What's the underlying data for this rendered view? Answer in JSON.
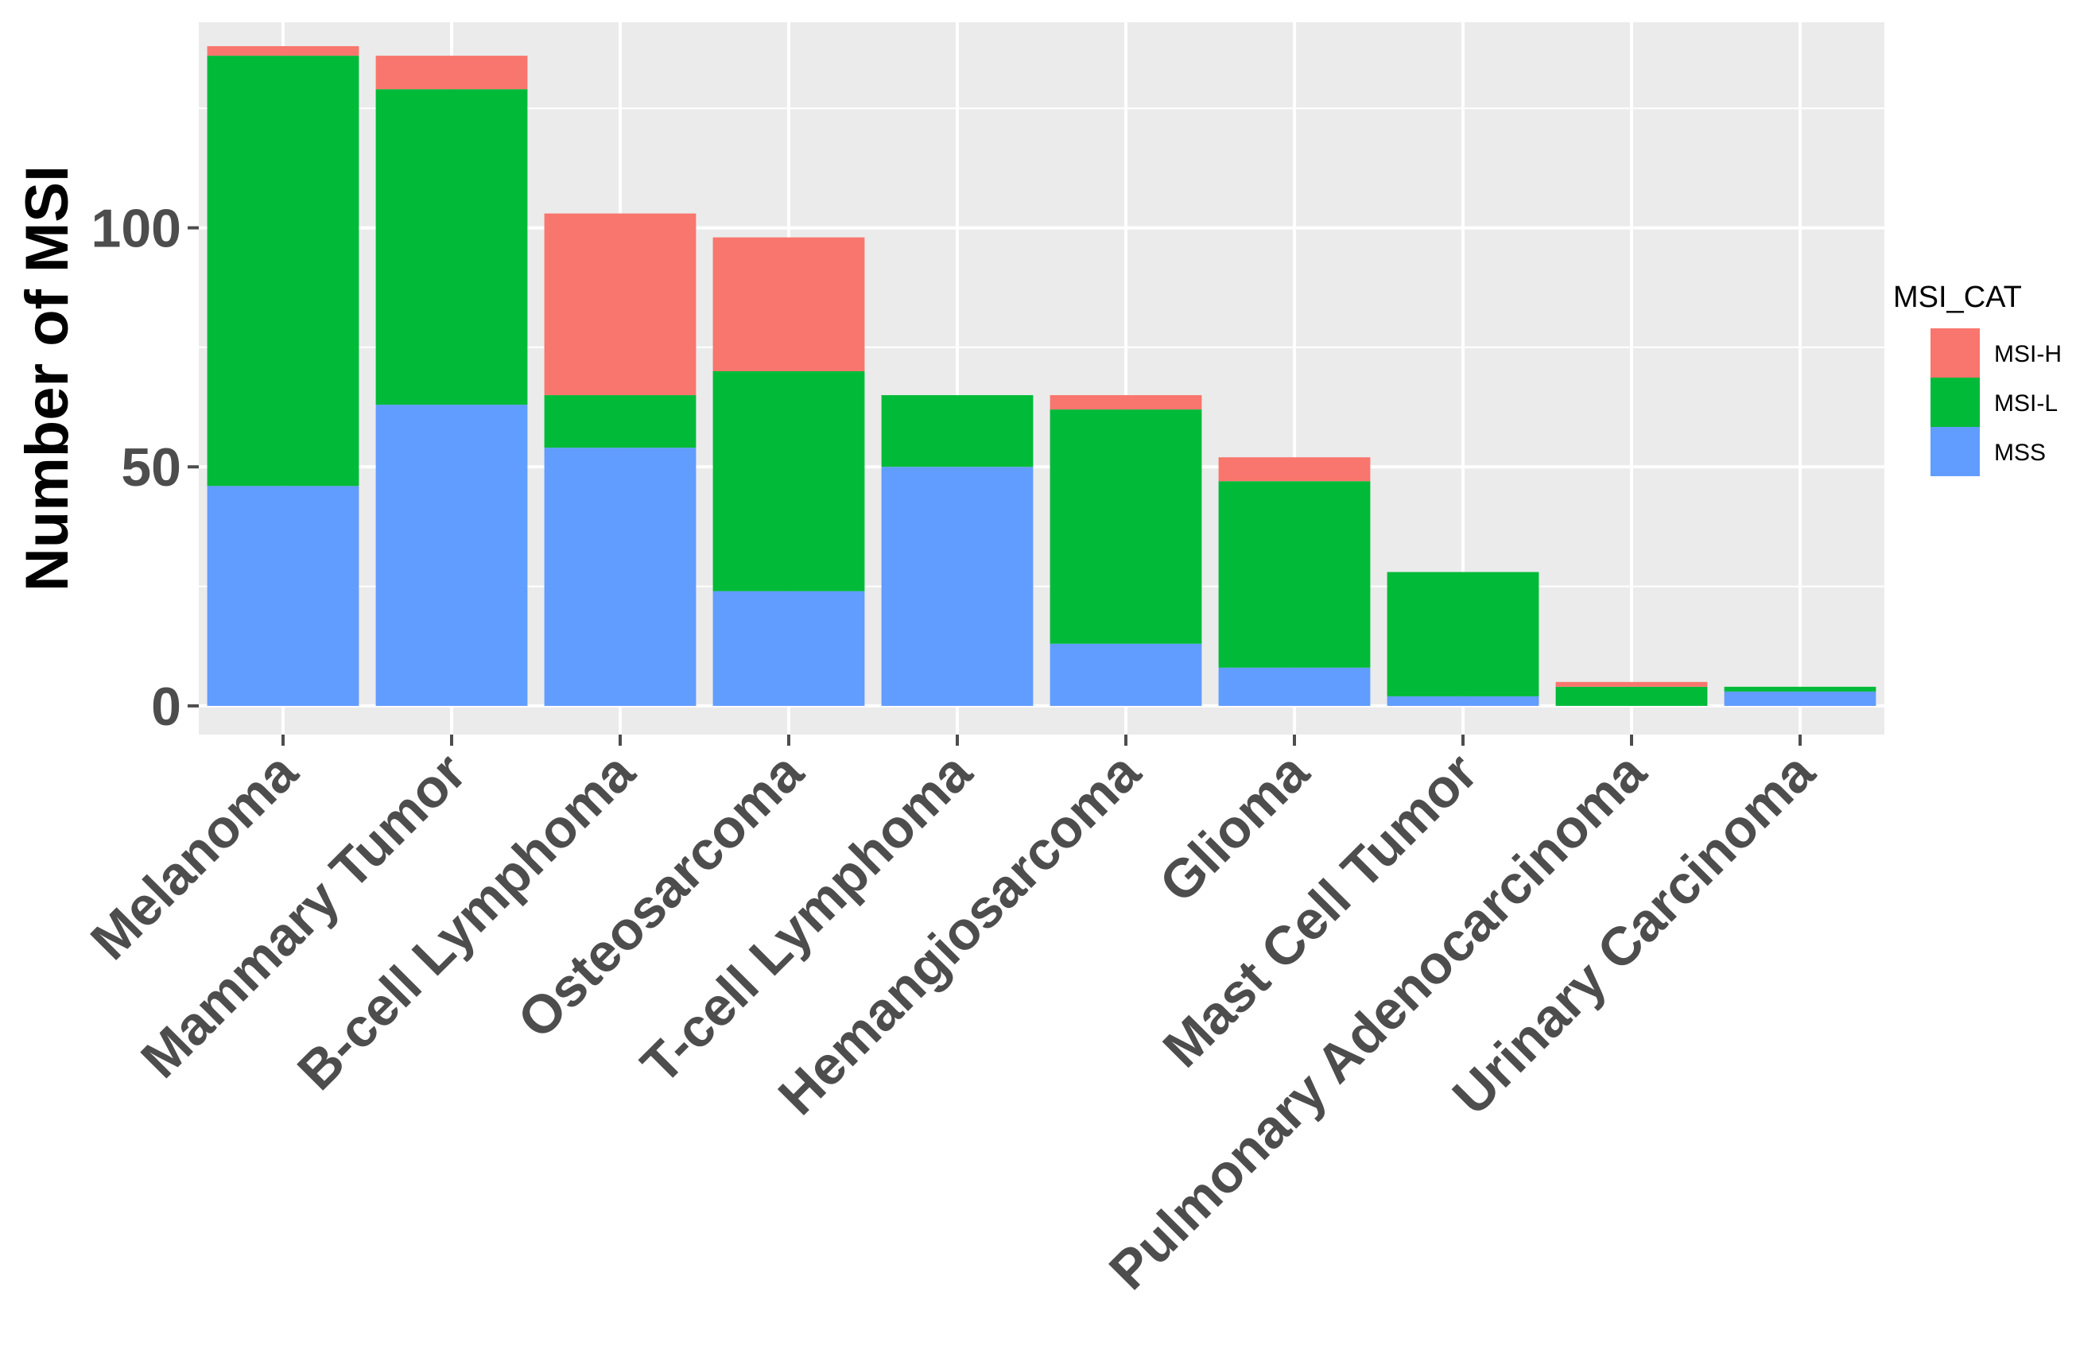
{
  "chart_data": {
    "type": "bar",
    "stacked": true,
    "title": "",
    "xlabel": "",
    "ylabel": "Number of MSI",
    "ylim": [
      -6,
      143
    ],
    "yticks": [
      0,
      50,
      100
    ],
    "grid": true,
    "legend": {
      "title": "MSI_CAT",
      "position": "right"
    },
    "categories": [
      "Melanoma",
      "Mammary Tumor",
      "B-cell Lymphoma",
      "Osteosarcoma",
      "T-cell Lymphoma",
      "Hemangiosarcoma",
      "Glioma",
      "Mast Cell Tumor",
      "Pulmonary Adenocarcinoma",
      "Urinary Carcinoma"
    ],
    "series": [
      {
        "name": "MSS",
        "color": "#619cff",
        "values": [
          46,
          63,
          54,
          24,
          50,
          13,
          8,
          2,
          0,
          3
        ]
      },
      {
        "name": "MSI-L",
        "color": "#00ba38",
        "values": [
          90,
          66,
          11,
          46,
          15,
          49,
          39,
          26,
          4,
          1
        ]
      },
      {
        "name": "MSI-H",
        "color": "#f8766d",
        "values": [
          2,
          7,
          38,
          28,
          0,
          3,
          5,
          0,
          1,
          0
        ]
      }
    ],
    "legend_order": [
      "MSI-H",
      "MSI-L",
      "MSS"
    ],
    "colors": {
      "panel": "#ebebeb",
      "grid": "#ffffff",
      "tick": "#4d4d4d"
    }
  }
}
